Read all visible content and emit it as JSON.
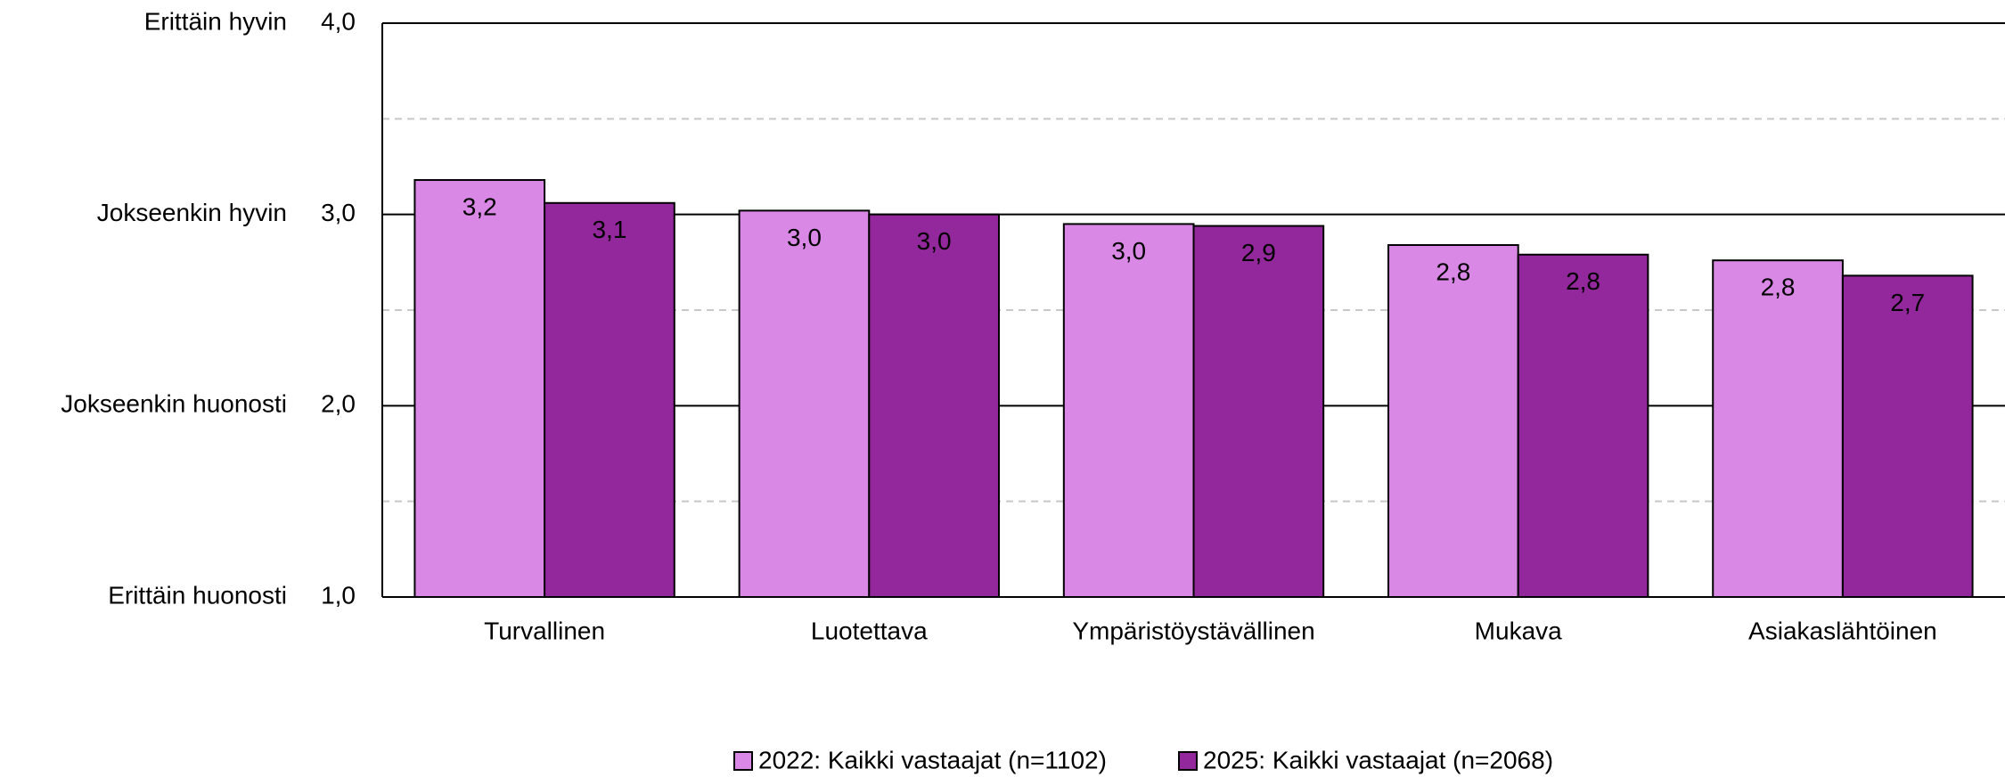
{
  "chart_data": {
    "type": "bar",
    "categories": [
      "Turvallinen",
      "Luotettava",
      "Ympäristöystävällinen",
      "Mukava",
      "Asiakaslähtöinen"
    ],
    "series": [
      {
        "name": "2022: Kaikki vastaajat (n=1102)",
        "color": "#d988e5",
        "values": [
          3.18,
          3.02,
          2.95,
          2.84,
          2.76
        ],
        "value_labels": [
          "3,2",
          "3,0",
          "3,0",
          "2,8",
          "2,8"
        ]
      },
      {
        "name": "2025: Kaikki vastaajat (n=2068)",
        "color": "#93279c",
        "values": [
          3.06,
          3.0,
          2.94,
          2.79,
          2.68
        ],
        "value_labels": [
          "3,1",
          "3,0",
          "2,9",
          "2,8",
          "2,7"
        ]
      }
    ],
    "ylim": [
      1,
      4
    ],
    "yticks": [
      {
        "value": 1,
        "label": "1,0"
      },
      {
        "value": 2,
        "label": "2,0"
      },
      {
        "value": 3,
        "label": "3,0"
      },
      {
        "value": 4,
        "label": "4,0"
      }
    ],
    "ytick_texts": [
      "Erittäin huonosti",
      "Jokseenkin huonosti",
      "Jokseenkin hyvin",
      "Erittäin hyvin"
    ],
    "yminor_ticks": [
      1.5,
      2.5,
      3.5
    ],
    "grid": true,
    "legend": "bottom"
  }
}
